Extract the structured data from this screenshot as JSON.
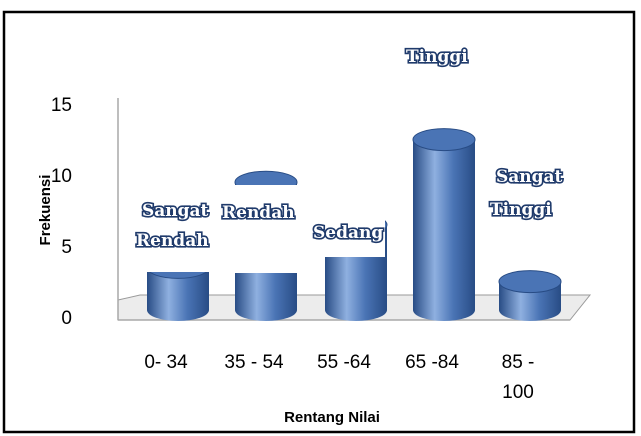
{
  "chart_data": {
    "type": "bar",
    "style": "3d-cylinder",
    "title": "",
    "xlabel": "Rentang Nilai",
    "ylabel": "Frekuensi",
    "ylim": [
      0,
      15
    ],
    "yticks": [
      "0",
      "5",
      "10",
      "15"
    ],
    "categories": [
      {
        "line1": "0- 34",
        "line2": ""
      },
      {
        "line1": "35 - 54",
        "line2": ""
      },
      {
        "line1": "55 -64",
        "line2": ""
      },
      {
        "line1": "65 -84",
        "line2": ""
      },
      {
        "line1": "85 -",
        "line2": "100"
      }
    ],
    "values": [
      3,
      9,
      6,
      12,
      2
    ],
    "data_labels": [
      {
        "line1": "Sangat",
        "line2": "Rendah"
      },
      {
        "line1": "Rendah",
        "line2": ""
      },
      {
        "line1": "Sedang",
        "line2": ""
      },
      {
        "line1": "Tinggi",
        "line2": ""
      },
      {
        "line1": "Sangat",
        "line2": "Tinggi"
      }
    ],
    "bar_color": "#4a74b5",
    "bar_dark": "#284c85",
    "bar_light": "#8fb0e0",
    "grid": false,
    "legend": "none"
  }
}
